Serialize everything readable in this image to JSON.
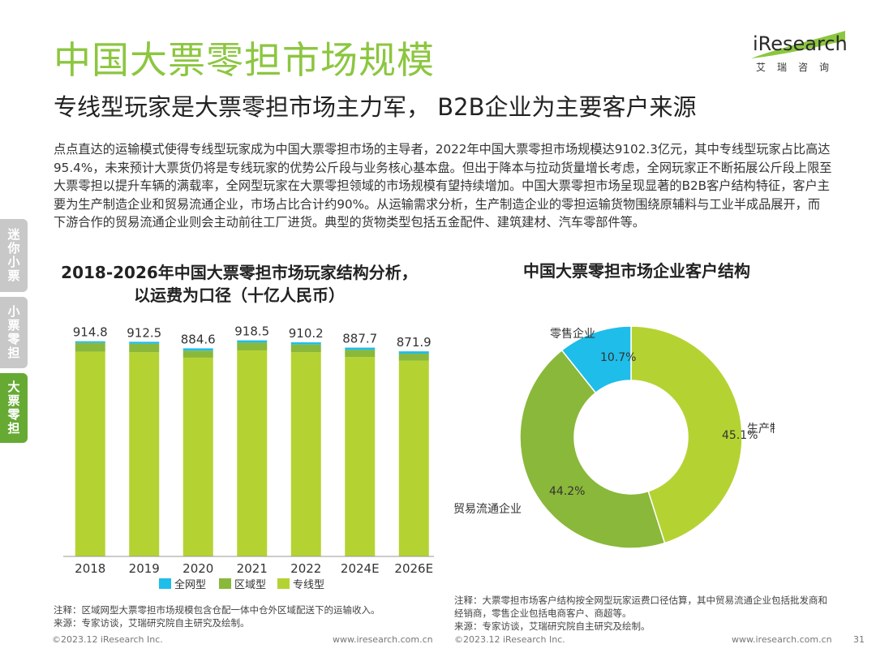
{
  "header": {
    "title": "中国大票零担市场规模",
    "subtitle": "专线型玩家是大票零担市场主力军， B2B企业为主要客户来源"
  },
  "logo": {
    "text": "iResearch",
    "cn": "艾瑞咨询"
  },
  "body_text": "点点直达的运输模式使得专线型玩家成为中国大票零担市场的主导者，2022年中国大票零担市场规模达9102.3亿元，其中专线型玩家占比高达95.4%，未来预计大票货仍将是专线玩家的优势公斤段与业务核心基本盘。但出于降本与拉动货量增长考虑，全网玩家正不断拓展公斤段上限至大票零担以提升车辆的满载率，全网型玩家在大票零担领域的市场规模有望持续增加。中国大票零担市场呈现显著的B2B客户结构特征，客户主要为生产制造企业和贸易流通企业，市场占比合计约90%。从运输需求分析，生产制造企业的零担运输货物围绕原辅料与工业半成品展开，而下游合作的贸易流通企业则会主动前往工厂进货。典型的货物类型包括五金配件、建筑建材、汽车零部件等。",
  "side_tabs": [
    "迷你小票",
    "小票零担",
    "大票零担"
  ],
  "legend": [
    {
      "label": "全网型",
      "color": "#1fbde9"
    },
    {
      "label": "区域型",
      "color": "#8ab83a"
    },
    {
      "label": "专线型",
      "color": "#b4d333"
    }
  ],
  "chart_data": [
    {
      "type": "bar",
      "title_line1": "2018-2026年中国大票零担市场玩家结构分析，",
      "title_line2": "以运费为口径（十亿人民币）",
      "categories": [
        "2018",
        "2019",
        "2020",
        "2021",
        "2022",
        "2024E",
        "2026E"
      ],
      "totals": [
        "914.8",
        "912.5",
        "884.6",
        "918.5",
        "910.2",
        "887.7",
        "871.9"
      ],
      "series": [
        {
          "name": "专线型",
          "values": [
            870,
            868,
            845,
            876,
            868,
            848,
            832
          ]
        },
        {
          "name": "区域型",
          "values": [
            38,
            36,
            30,
            33,
            33,
            30,
            30
          ]
        },
        {
          "name": "全网型",
          "values": [
            6.8,
            8.5,
            9.6,
            9.5,
            9.2,
            9.7,
            9.9
          ]
        }
      ],
      "ylim": [
        0,
        1000
      ]
    },
    {
      "type": "pie",
      "title": "中国大票零担市场企业客户结构",
      "slices": [
        {
          "label": "生产制造企业",
          "value": 45.1,
          "pct": "45.1%",
          "color": "#b4d333"
        },
        {
          "label": "贸易流通企业",
          "value": 44.2,
          "pct": "44.2%",
          "color": "#8ab83a"
        },
        {
          "label": "零售企业",
          "value": 10.7,
          "pct": "10.7%",
          "color": "#1fbde9"
        }
      ]
    }
  ],
  "notes": {
    "left": [
      "注释：区域网型大票零担市场规模包含仓配一体中仓外区域配送下的运输收入。",
      "来源：专家访谈，艾瑞研究院自主研究及绘制。"
    ],
    "right": [
      "注释：大票零担市场客户结构按全网型玩家运费口径估算，其中贸易流通企业包括批发商和经销商，零售企业包括电商客户、商超等。",
      "来源：专家访谈，艾瑞研究院自主研究及绘制。"
    ]
  },
  "footer": {
    "copyright": "©2023.12 iResearch Inc.",
    "url": "www.iresearch.com.cn",
    "page": "31"
  }
}
